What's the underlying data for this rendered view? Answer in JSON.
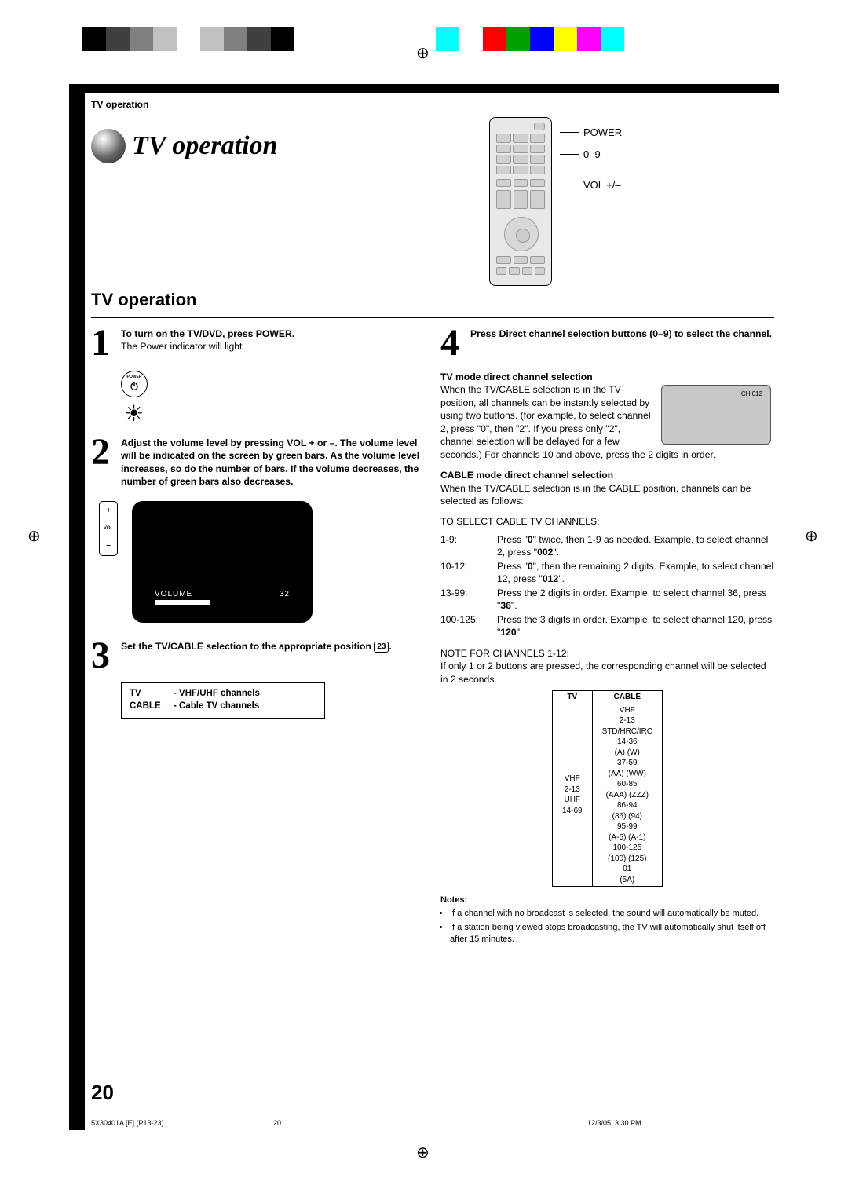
{
  "color_bars_left": [
    "#000000",
    "#404040",
    "#808080",
    "#c0c0c0",
    "#ffffff",
    "#c0c0c0",
    "#808080",
    "#404040",
    "#000000"
  ],
  "color_bars_right": [
    "#00ffff",
    "#ffffff",
    "#ff0000",
    "#00a000",
    "#0000ff",
    "#ffff00",
    "#ff00ff",
    "#00ffff"
  ],
  "header": {
    "section": "TV operation"
  },
  "title": {
    "full": "TV operation",
    "prefix": "TV",
    "suffix": " operation"
  },
  "remote_labels": {
    "power": "POWER",
    "digits": "0–9",
    "vol": "VOL +/–"
  },
  "section_heading": "TV operation",
  "steps": {
    "s1": {
      "num": "1",
      "head": "To turn on the TV/DVD, press POWER.",
      "body": "The Power indicator will light.",
      "power_label": "POWER"
    },
    "s2": {
      "num": "2",
      "head": "Adjust the volume level by pressing VOL + or –. The volume level will be indicated on the screen by green bars. As the volume level increases, so do the number of bars. If the volume decreases, the number of green bars also decreases.",
      "vol_plus": "+",
      "vol_lbl": "VOL",
      "vol_minus": "–",
      "screen_label": "VOLUME",
      "screen_value": "32"
    },
    "s3": {
      "num": "3",
      "head_a": "Set the TV/CABLE selection to the appropriate position ",
      "ref": "23",
      "head_b": ".",
      "def_tv_k": "TV",
      "def_tv_v": "- VHF/UHF channels",
      "def_cable_k": "CABLE",
      "def_cable_v": "- Cable TV channels"
    },
    "s4": {
      "num": "4",
      "head": "Press Direct channel selection buttons (0–9) to select the channel.",
      "sub1_head": "TV mode direct channel selection",
      "sub1_body_a": "When the TV/CABLE selection is in the TV position, all channels can be instantly selected by using two buttons. (for example, to select channel 2, press \"0\", then \"2\". If you press only \"2\", channel selection will be delayed for a few seconds.) For channels 10 and above, press the 2 digits in order.",
      "mini_screen": "CH 012",
      "sub2_head": "CABLE mode direct channel selection",
      "sub2_body": "When the TV/CABLE selection is in the CABLE position, channels can be selected as follows:",
      "cable_heading": "TO SELECT CABLE TV CHANNELS:",
      "rows": [
        {
          "r": "1-9:",
          "t_a": "Press \"",
          "b1": "0",
          "t_b": "\" twice, then 1-9 as needed. Example, to select channel 2, press \"",
          "b2": "002",
          "t_c": "\"."
        },
        {
          "r": "10-12:",
          "t_a": "Press \"",
          "b1": "0",
          "t_b": "\", then the remaining 2 digits. Example, to select channel 12, press \"",
          "b2": "012",
          "t_c": "\"."
        },
        {
          "r": "13-99:",
          "t_a": "Press the 2 digits in order. Example, to select channel 36, press \"",
          "b1": "36",
          "t_b": "\".",
          "b2": "",
          "t_c": ""
        },
        {
          "r": "100-125:",
          "t_a": "Press the 3 digits in order. Example, to select channel 120, press \"",
          "b1": "120",
          "t_b": "\".",
          "b2": "",
          "t_c": ""
        }
      ],
      "note_heading": "NOTE FOR CHANNELS 1-12:",
      "note_body": "If only 1 or 2 buttons are pressed, the corresponding channel will be selected in 2 seconds.",
      "table": {
        "th_tv": "TV",
        "th_cable": "CABLE",
        "tv_cells": [
          "VHF",
          "2-13",
          "UHF",
          "14-69"
        ],
        "cable_cells": [
          "VHF",
          "2-13",
          "STD/HRC/IRC",
          "14-36",
          "(A) (W)",
          "37-59",
          "(AA) (WW)",
          "60-85",
          "(AAA) (ZZZ)",
          "86-94",
          "(86) (94)",
          "95-99",
          "(A-5) (A-1)",
          "100-125",
          "(100) (125)",
          "01",
          "(5A)"
        ]
      }
    }
  },
  "notes": {
    "heading": "Notes:",
    "items": [
      "If a channel with no broadcast is selected, the sound will automatically be muted.",
      "If a station being viewed stops broadcasting, the TV will automatically shut itself off after 15 minutes."
    ]
  },
  "page_number": "20",
  "footer": {
    "left": "5X30401A [E] (P13-23)",
    "mid": "20",
    "right": "12/3/05, 3:30 PM"
  }
}
